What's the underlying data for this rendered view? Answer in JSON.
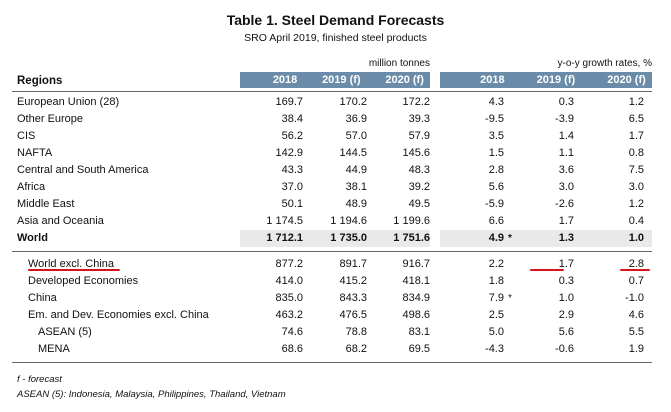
{
  "title": "Table 1. Steel Demand Forecasts",
  "subtitle": "SRO April 2019, finished steel products",
  "units": {
    "left": "million tonnes",
    "right": "y-o-y growth rates, %"
  },
  "header": {
    "regions": "Regions",
    "left": [
      "2018",
      "2019 (f)",
      "2020 (f)"
    ],
    "right": [
      "2018",
      "2019 (f)",
      "2020 (f)"
    ]
  },
  "rows": [
    {
      "name": "European Union (28)",
      "v": [
        "169.7",
        "170.2",
        "172.2"
      ],
      "g": [
        "4.3",
        "0.3",
        "1.2"
      ],
      "star": ""
    },
    {
      "name": "Other Europe",
      "v": [
        "38.4",
        "36.9",
        "39.3"
      ],
      "g": [
        "-9.5",
        "-3.9",
        "6.5"
      ],
      "star": ""
    },
    {
      "name": "CIS",
      "v": [
        "56.2",
        "57.0",
        "57.9"
      ],
      "g": [
        "3.5",
        "1.4",
        "1.7"
      ],
      "star": ""
    },
    {
      "name": "NAFTA",
      "v": [
        "142.9",
        "144.5",
        "145.6"
      ],
      "g": [
        "1.5",
        "1.1",
        "0.8"
      ],
      "star": ""
    },
    {
      "name": "Central and South America",
      "v": [
        "43.3",
        "44.9",
        "48.3"
      ],
      "g": [
        "2.8",
        "3.6",
        "7.5"
      ],
      "star": ""
    },
    {
      "name": "Africa",
      "v": [
        "37.0",
        "38.1",
        "39.2"
      ],
      "g": [
        "5.6",
        "3.0",
        "3.0"
      ],
      "star": ""
    },
    {
      "name": "Middle East",
      "v": [
        "50.1",
        "48.9",
        "49.5"
      ],
      "g": [
        "-5.9",
        "-2.6",
        "1.2"
      ],
      "star": ""
    },
    {
      "name": "Asia and Oceania",
      "v": [
        "1 174.5",
        "1 194.6",
        "1 199.6"
      ],
      "g": [
        "6.6",
        "1.7",
        "0.4"
      ],
      "star": ""
    },
    {
      "name": "World",
      "v": [
        "1 712.1",
        "1 735.0",
        "1 751.6"
      ],
      "g": [
        "4.9",
        "1.3",
        "1.0"
      ],
      "star": "*"
    },
    {
      "name": "World excl. China",
      "v": [
        "877.2",
        "891.7",
        "916.7"
      ],
      "g": [
        "2.2",
        "1.7",
        "2.8"
      ],
      "star": ""
    },
    {
      "name": "Developed Economies",
      "v": [
        "414.0",
        "415.2",
        "418.1"
      ],
      "g": [
        "1.8",
        "0.3",
        "0.7"
      ],
      "star": ""
    },
    {
      "name": "China",
      "v": [
        "835.0",
        "843.3",
        "834.9"
      ],
      "g": [
        "7.9",
        "1.0",
        "-1.0"
      ],
      "star": "*"
    },
    {
      "name": "Em. and Dev. Economies excl. China",
      "v": [
        "463.2",
        "476.5",
        "498.6"
      ],
      "g": [
        "2.5",
        "2.9",
        "4.6"
      ],
      "star": ""
    },
    {
      "name": "ASEAN (5)",
      "v": [
        "74.6",
        "78.8",
        "83.1"
      ],
      "g": [
        "5.0",
        "5.6",
        "5.5"
      ],
      "star": ""
    },
    {
      "name": "MENA",
      "v": [
        "68.6",
        "68.2",
        "69.5"
      ],
      "g": [
        "-4.3",
        "-0.6",
        "1.9"
      ],
      "star": ""
    }
  ],
  "footnotes": [
    "f - forecast",
    "ASEAN (5): Indonesia, Malaysia, Philippines, Thailand, Vietnam"
  ],
  "colors": {
    "header": "#6b8ca8",
    "shade": "#e9e9e9",
    "annotation": "#d8141b"
  }
}
